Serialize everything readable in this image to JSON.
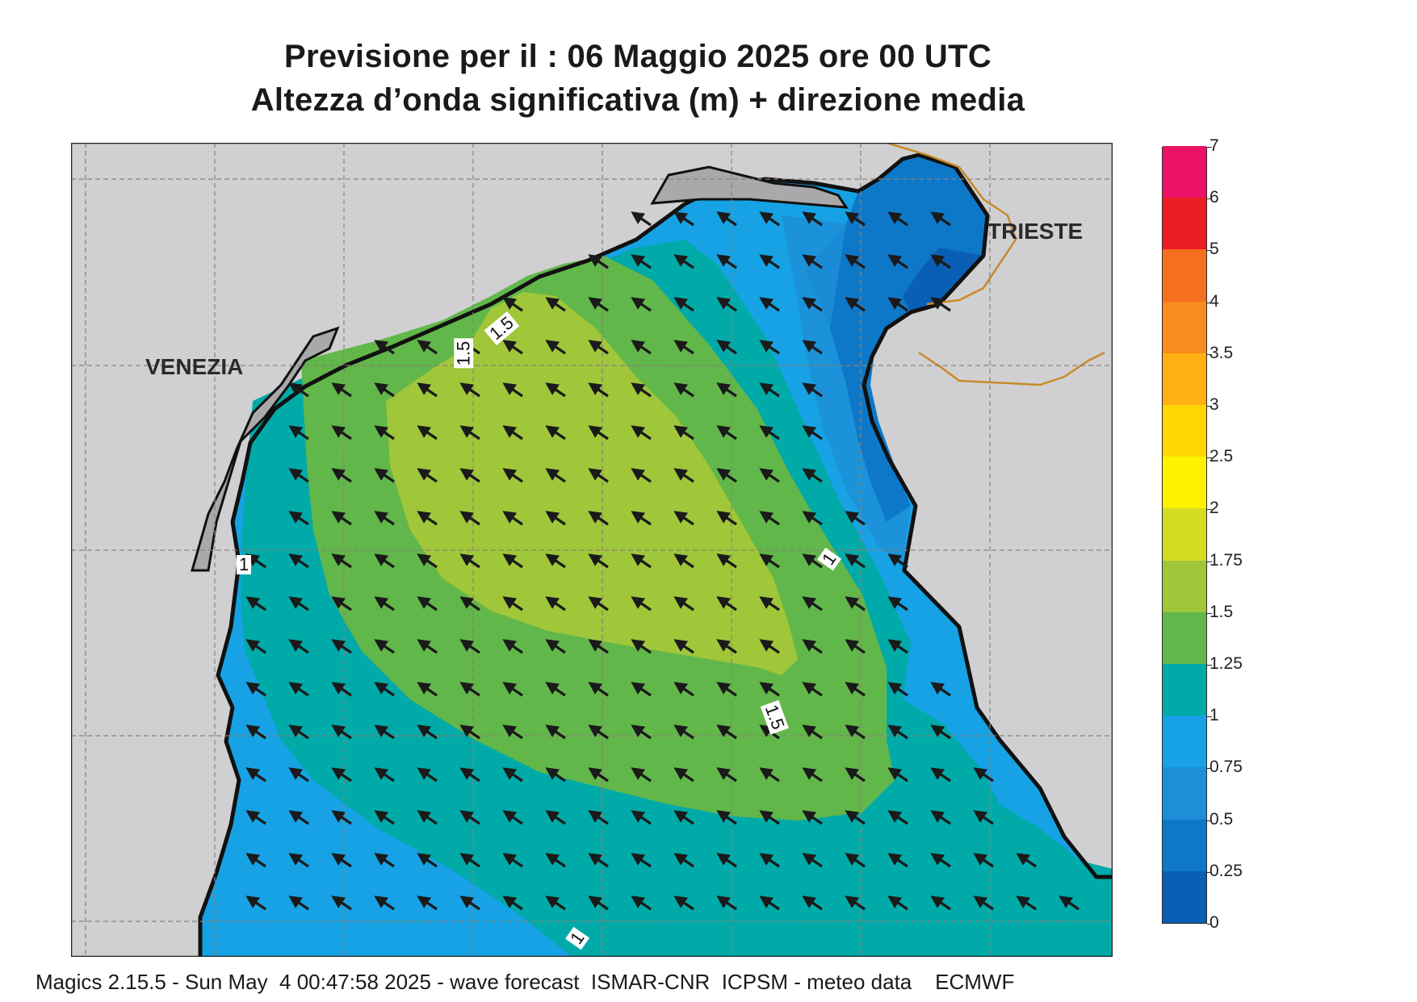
{
  "title_line1": "Previsione per il  :  06   Maggio  2025   ore 00 UTC",
  "title_line2": "Altezza d’onda significativa (m) + direzione media",
  "cities": {
    "venezia": "VENEZIA",
    "trieste": "TRIESTE"
  },
  "contour_labels": {
    "a": "1",
    "b": "1",
    "c": "1.5",
    "d": "1",
    "e": "1.5",
    "f": "1.5"
  },
  "legend": {
    "levels": [
      "0",
      "0.25",
      "0.5",
      "0.75",
      "1",
      "1.25",
      "1.5",
      "1.75",
      "2",
      "2.5",
      "3",
      "3.5",
      "4",
      "5",
      "6",
      "7"
    ],
    "colors": [
      "#0a5eb4",
      "#0e78c8",
      "#1c8fd8",
      "#16a2e4",
      "#00aaa8",
      "#62b74a",
      "#a0c63a",
      "#d3dc20",
      "#fff200",
      "#ffd600",
      "#ffb114",
      "#f88c1c",
      "#f4701e",
      "#ec1c24",
      "#ec1266"
    ]
  },
  "wave_direction": "from south-east (arrows pointing north-west)",
  "footer": "Magics 2.15.5 - Sun May  4 00:47:58 2025 - wave forecast  ISMAR-CNR  ICPSM - meteo data    ECMWF"
}
